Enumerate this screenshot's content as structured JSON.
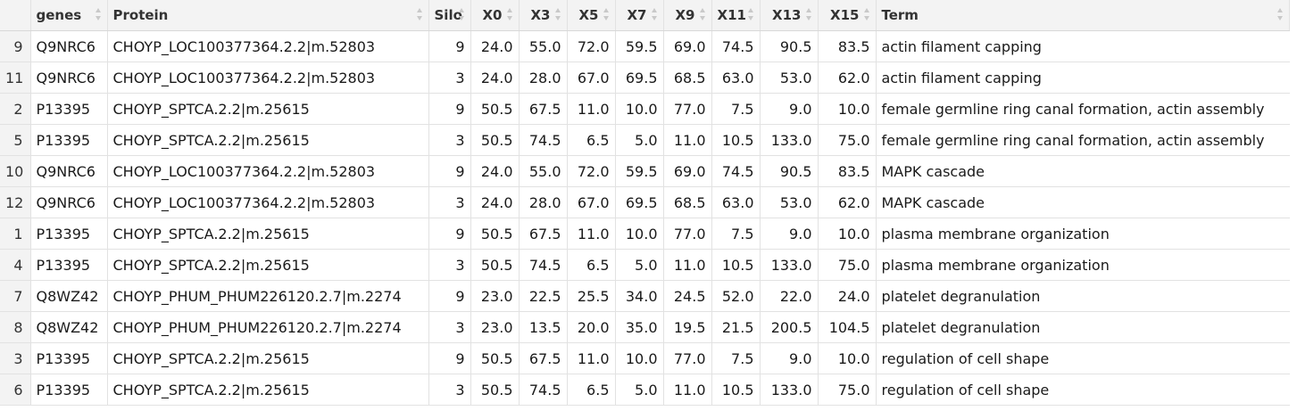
{
  "table": {
    "headers": [
      "genes",
      "Protein",
      "Silo",
      "X0",
      "X3",
      "X5",
      "X7",
      "X9",
      "X11",
      "X13",
      "X15",
      "Term"
    ],
    "rows": [
      {
        "idx": "9",
        "genes": "Q9NRC6",
        "protein": "CHOYP_LOC100377364.2.2|m.52803",
        "silo": "9",
        "x0": "24.0",
        "x3": "55.0",
        "x5": "72.0",
        "x7": "59.5",
        "x9": "69.0",
        "x11": "74.5",
        "x13": "90.5",
        "x15": "83.5",
        "term": "actin filament capping"
      },
      {
        "idx": "11",
        "genes": "Q9NRC6",
        "protein": "CHOYP_LOC100377364.2.2|m.52803",
        "silo": "3",
        "x0": "24.0",
        "x3": "28.0",
        "x5": "67.0",
        "x7": "69.5",
        "x9": "68.5",
        "x11": "63.0",
        "x13": "53.0",
        "x15": "62.0",
        "term": "actin filament capping"
      },
      {
        "idx": "2",
        "genes": "P13395",
        "protein": "CHOYP_SPTCA.2.2|m.25615",
        "silo": "9",
        "x0": "50.5",
        "x3": "67.5",
        "x5": "11.0",
        "x7": "10.0",
        "x9": "77.0",
        "x11": "7.5",
        "x13": "9.0",
        "x15": "10.0",
        "term": "female germline ring canal formation, actin assembly"
      },
      {
        "idx": "5",
        "genes": "P13395",
        "protein": "CHOYP_SPTCA.2.2|m.25615",
        "silo": "3",
        "x0": "50.5",
        "x3": "74.5",
        "x5": "6.5",
        "x7": "5.0",
        "x9": "11.0",
        "x11": "10.5",
        "x13": "133.0",
        "x15": "75.0",
        "term": "female germline ring canal formation, actin assembly"
      },
      {
        "idx": "10",
        "genes": "Q9NRC6",
        "protein": "CHOYP_LOC100377364.2.2|m.52803",
        "silo": "9",
        "x0": "24.0",
        "x3": "55.0",
        "x5": "72.0",
        "x7": "59.5",
        "x9": "69.0",
        "x11": "74.5",
        "x13": "90.5",
        "x15": "83.5",
        "term": "MAPK cascade"
      },
      {
        "idx": "12",
        "genes": "Q9NRC6",
        "protein": "CHOYP_LOC100377364.2.2|m.52803",
        "silo": "3",
        "x0": "24.0",
        "x3": "28.0",
        "x5": "67.0",
        "x7": "69.5",
        "x9": "68.5",
        "x11": "63.0",
        "x13": "53.0",
        "x15": "62.0",
        "term": "MAPK cascade"
      },
      {
        "idx": "1",
        "genes": "P13395",
        "protein": "CHOYP_SPTCA.2.2|m.25615",
        "silo": "9",
        "x0": "50.5",
        "x3": "67.5",
        "x5": "11.0",
        "x7": "10.0",
        "x9": "77.0",
        "x11": "7.5",
        "x13": "9.0",
        "x15": "10.0",
        "term": "plasma membrane organization"
      },
      {
        "idx": "4",
        "genes": "P13395",
        "protein": "CHOYP_SPTCA.2.2|m.25615",
        "silo": "3",
        "x0": "50.5",
        "x3": "74.5",
        "x5": "6.5",
        "x7": "5.0",
        "x9": "11.0",
        "x11": "10.5",
        "x13": "133.0",
        "x15": "75.0",
        "term": "plasma membrane organization"
      },
      {
        "idx": "7",
        "genes": "Q8WZ42",
        "protein": "CHOYP_PHUM_PHUM226120.2.7|m.2274",
        "silo": "9",
        "x0": "23.0",
        "x3": "22.5",
        "x5": "25.5",
        "x7": "34.0",
        "x9": "24.5",
        "x11": "52.0",
        "x13": "22.0",
        "x15": "24.0",
        "term": "platelet degranulation"
      },
      {
        "idx": "8",
        "genes": "Q8WZ42",
        "protein": "CHOYP_PHUM_PHUM226120.2.7|m.2274",
        "silo": "3",
        "x0": "23.0",
        "x3": "13.5",
        "x5": "20.0",
        "x7": "35.0",
        "x9": "19.5",
        "x11": "21.5",
        "x13": "200.5",
        "x15": "104.5",
        "term": "platelet degranulation"
      },
      {
        "idx": "3",
        "genes": "P13395",
        "protein": "CHOYP_SPTCA.2.2|m.25615",
        "silo": "9",
        "x0": "50.5",
        "x3": "67.5",
        "x5": "11.0",
        "x7": "10.0",
        "x9": "77.0",
        "x11": "7.5",
        "x13": "9.0",
        "x15": "10.0",
        "term": "regulation of cell shape"
      },
      {
        "idx": "6",
        "genes": "P13395",
        "protein": "CHOYP_SPTCA.2.2|m.25615",
        "silo": "3",
        "x0": "50.5",
        "x3": "74.5",
        "x5": "6.5",
        "x7": "5.0",
        "x9": "11.0",
        "x11": "10.5",
        "x13": "133.0",
        "x15": "75.0",
        "term": "regulation of cell shape"
      }
    ]
  }
}
